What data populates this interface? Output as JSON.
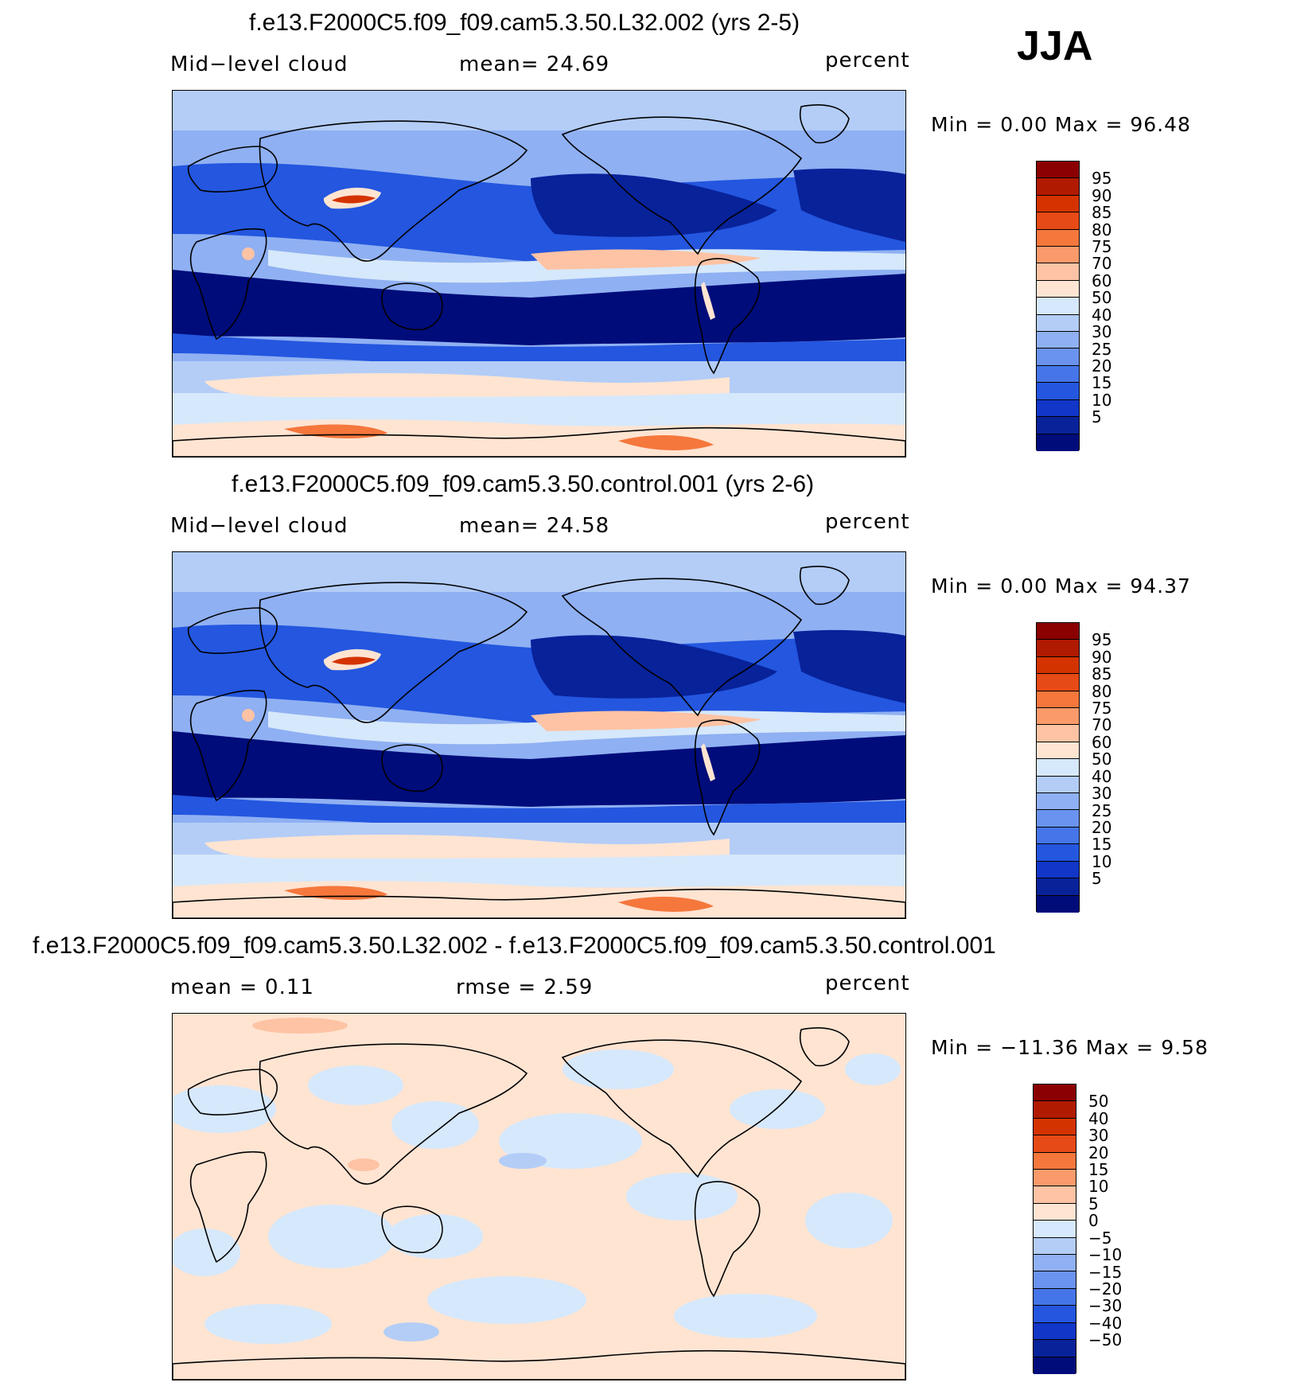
{
  "season": "JJA",
  "panels": [
    {
      "title": "f.e13.F2000C5.f09_f09.cam5.3.50.L32.002 (yrs 2-5)",
      "left_label": "Mid−level  cloud",
      "mid_label": "mean=    24.69",
      "units": "percent",
      "minmax": "Min  =       0.00  Max  =     96.48",
      "colorbar": {
        "colors": [
          "#8b0000",
          "#b01a00",
          "#d43300",
          "#e64a16",
          "#f5773c",
          "#fa9a6a",
          "#fdc3a4",
          "#ffe4d2",
          "#d6e8fb",
          "#b3cdf7",
          "#8fb0f2",
          "#6a93ef",
          "#4575e8",
          "#2456df",
          "#1136c8",
          "#08229a",
          "#000c7a"
        ],
        "labels": [
          "95",
          "90",
          "85",
          "80",
          "75",
          "70",
          "60",
          "50",
          "40",
          "30",
          "25",
          "20",
          "15",
          "10",
          "5"
        ]
      },
      "map_style": "cloud",
      "ocean_color": "#b3cdf7"
    },
    {
      "title": "f.e13.F2000C5.f09_f09.cam5.3.50.control.001 (yrs 2-6)",
      "left_label": "Mid−level  cloud",
      "mid_label": "mean=    24.58",
      "units": "percent",
      "minmax": "Min  =       0.00  Max  =     94.37",
      "colorbar": {
        "colors": [
          "#8b0000",
          "#b01a00",
          "#d43300",
          "#e64a16",
          "#f5773c",
          "#fa9a6a",
          "#fdc3a4",
          "#ffe4d2",
          "#d6e8fb",
          "#b3cdf7",
          "#8fb0f2",
          "#6a93ef",
          "#4575e8",
          "#2456df",
          "#1136c8",
          "#08229a",
          "#000c7a"
        ],
        "labels": [
          "95",
          "90",
          "85",
          "80",
          "75",
          "70",
          "60",
          "50",
          "40",
          "30",
          "25",
          "20",
          "15",
          "10",
          "5"
        ]
      },
      "map_style": "cloud",
      "ocean_color": "#b3cdf7"
    },
    {
      "title": "f.e13.F2000C5.f09_f09.cam5.3.50.L32.002 - f.e13.F2000C5.f09_f09.cam5.3.50.control.001",
      "left_label": "mean  =      0.11",
      "mid_label": "rmse  =      2.59",
      "units": "percent",
      "minmax": "Min  =  −11.36  Max  =      9.58",
      "colorbar": {
        "colors": [
          "#8b0000",
          "#b01a00",
          "#d43300",
          "#e64a16",
          "#f5773c",
          "#fa9a6a",
          "#fdc3a4",
          "#ffe4d2",
          "#d6e8fb",
          "#b3cdf7",
          "#8fb0f2",
          "#6a93ef",
          "#4575e8",
          "#2456df",
          "#1136c8",
          "#08229a",
          "#000c7a"
        ],
        "labels": [
          "50",
          "40",
          "30",
          "20",
          "15",
          "10",
          "5",
          "0",
          "−5",
          "−10",
          "−15",
          "−20",
          "−30",
          "−40",
          "−50"
        ]
      },
      "map_style": "diff",
      "ocean_color": "#ffe4d2"
    }
  ]
}
